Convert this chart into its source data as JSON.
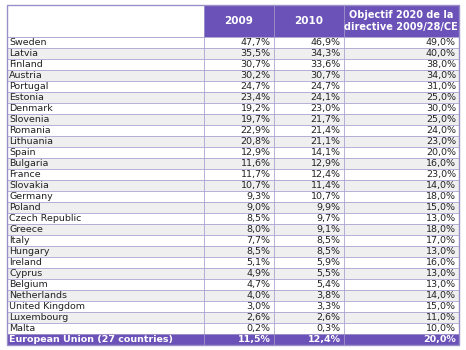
{
  "rows": [
    [
      "Sweden",
      "47,7%",
      "46,9%",
      "49,0%"
    ],
    [
      "Latvia",
      "35,5%",
      "34,3%",
      "40,0%"
    ],
    [
      "Finland",
      "30,7%",
      "33,6%",
      "38,0%"
    ],
    [
      "Austria",
      "30,2%",
      "30,7%",
      "34,0%"
    ],
    [
      "Portugal",
      "24,7%",
      "24,7%",
      "31,0%"
    ],
    [
      "Estonia",
      "23,4%",
      "24,1%",
      "25,0%"
    ],
    [
      "Denmark",
      "19,2%",
      "23,0%",
      "30,0%"
    ],
    [
      "Slovenia",
      "19,7%",
      "21,7%",
      "25,0%"
    ],
    [
      "Romania",
      "22,9%",
      "21,4%",
      "24,0%"
    ],
    [
      "Lithuania",
      "20,8%",
      "21,1%",
      "23,0%"
    ],
    [
      "Spain",
      "12,9%",
      "14,1%",
      "20,0%"
    ],
    [
      "Bulgaria",
      "11,6%",
      "12,9%",
      "16,0%"
    ],
    [
      "France",
      "11,7%",
      "12,4%",
      "23,0%"
    ],
    [
      "Slovakia",
      "10,7%",
      "11,4%",
      "14,0%"
    ],
    [
      "Germany",
      "9,3%",
      "10,7%",
      "18,0%"
    ],
    [
      "Poland",
      "9,0%",
      "9,9%",
      "15,0%"
    ],
    [
      "Czech Republic",
      "8,5%",
      "9,7%",
      "13,0%"
    ],
    [
      "Greece",
      "8,0%",
      "9,1%",
      "18,0%"
    ],
    [
      "Italy",
      "7,7%",
      "8,5%",
      "17,0%"
    ],
    [
      "Hungary",
      "8,5%",
      "8,5%",
      "13,0%"
    ],
    [
      "Ireland",
      "5,1%",
      "5,9%",
      "16,0%"
    ],
    [
      "Cyprus",
      "4,9%",
      "5,5%",
      "13,0%"
    ],
    [
      "Belgium",
      "4,7%",
      "5,4%",
      "13,0%"
    ],
    [
      "Netherlands",
      "4,0%",
      "3,8%",
      "14,0%"
    ],
    [
      "United Kingdom",
      "3,0%",
      "3,3%",
      "15,0%"
    ],
    [
      "Luxembourg",
      "2,6%",
      "2,6%",
      "11,0%"
    ],
    [
      "Malta",
      "0,2%",
      "0,3%",
      "10,0%"
    ],
    [
      "European Union (27 countries)",
      "11,5%",
      "12,4%",
      "20,0%"
    ]
  ],
  "col_headers": [
    "2009",
    "2010",
    "Objectif 2020 de la\ndirective 2009/28/CE"
  ],
  "header_bg": "#6b52b8",
  "header_fg": "#ffffff",
  "footer_bg": "#6b52b8",
  "footer_fg": "#ffffff",
  "row_bg_even": "#ffffff",
  "row_bg_odd": "#efefef",
  "border_color": "#9b8fc8",
  "text_color_body": "#222222",
  "font_size": 6.8,
  "header_font_size": 7.5
}
